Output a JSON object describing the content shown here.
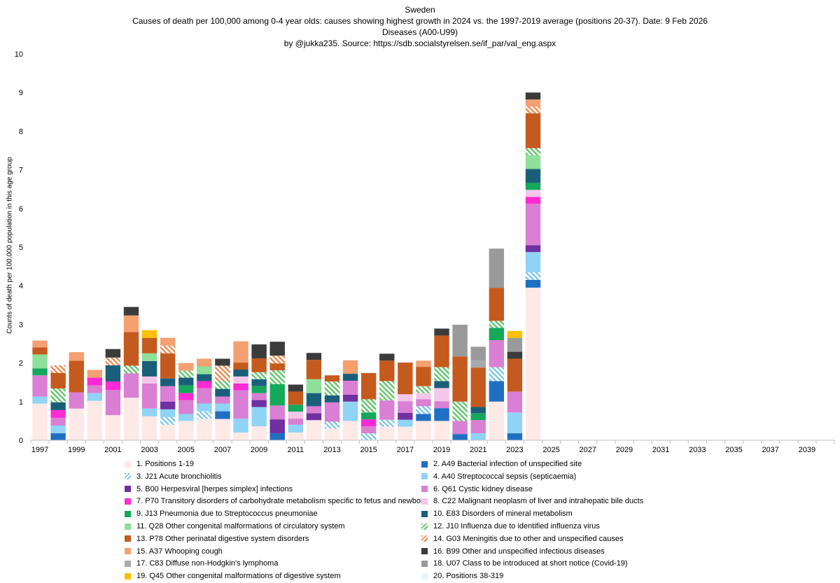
{
  "titles": {
    "line1": "Sweden",
    "line2": "Causes of death per 100,000 among 0-4 year olds: causes showing highest growth in 2024 vs. the 1997-2019 average (positions 20-37). Date: 9 Feb 2026",
    "line3": "Diseases (A00-U99)",
    "line4": "by @jukka235. Source: https://sdb.socialstyrelsen.se/if_par/val_eng.aspx"
  },
  "chart_data": {
    "type": "bar",
    "stacked": true,
    "title": "Causes of death per 100,000 among 0-4 year olds: causes showing highest growth in 2024 vs. the 1997-2019 average (positions 20-37). Date: 9 Feb 2026",
    "xlabel": "",
    "ylabel": "Counts of death per 100,000 population in this age group",
    "ylim": [
      0,
      10
    ],
    "yticks": [
      "0",
      "1",
      "2",
      "3",
      "4",
      "5",
      "6",
      "7",
      "8",
      "9",
      "10"
    ],
    "xlim": [
      1997,
      2040
    ],
    "xticks": [
      "1997",
      "1999",
      "2001",
      "2003",
      "2005",
      "2007",
      "2009",
      "2011",
      "2013",
      "2015",
      "2017",
      "2019",
      "2021",
      "2023",
      "2025",
      "2027",
      "2029",
      "2031",
      "2033",
      "2035",
      "2037",
      "2039"
    ],
    "categories": [
      "1997",
      "1998",
      "1999",
      "2000",
      "2001",
      "2002",
      "2003",
      "2004",
      "2005",
      "2006",
      "2007",
      "2008",
      "2009",
      "2010",
      "2011",
      "2012",
      "2013",
      "2014",
      "2015",
      "2016",
      "2017",
      "2018",
      "2019",
      "2020",
      "2021",
      "2022",
      "2023",
      "2024"
    ],
    "series": [
      {
        "name": "1. Positions 1-19",
        "color": "#fde9e6",
        "pattern": "solid",
        "values": [
          0.95,
          0.0,
          0.82,
          1.02,
          0.65,
          1.1,
          0.62,
          0.4,
          0.5,
          0.55,
          0.55,
          0.2,
          0.36,
          0.0,
          0.2,
          0.52,
          0.3,
          0.5,
          0.0,
          0.35,
          0.35,
          0.5,
          0.5,
          0.0,
          0.0,
          1.0,
          0.0,
          3.95
        ]
      },
      {
        "name": "2. A49 Bacterial infection of unspecified site",
        "color": "#1f6fc3",
        "pattern": "solid",
        "values": [
          0,
          0.18,
          0,
          0,
          0,
          0,
          0,
          0,
          0,
          0,
          0.2,
          0,
          0,
          0.18,
          0,
          0,
          0,
          0,
          0,
          0,
          0,
          0.18,
          0.33,
          0.16,
          0,
          0.53,
          0.18,
          0.2
        ]
      },
      {
        "name": "3. J21 Acute bronchiolitis",
        "color": "#7cc7e8",
        "pattern": "hatch",
        "values": [
          0,
          0,
          0,
          0,
          0,
          0,
          0,
          0.2,
          0,
          0.2,
          0,
          0,
          0,
          0,
          0,
          0,
          0.18,
          0,
          0.18,
          0.18,
          0,
          0.2,
          0,
          0,
          0,
          0.36,
          0,
          0.2
        ]
      },
      {
        "name": "4. A40 Streptococcal sepsis (septicaemia)",
        "color": "#8fd3f5",
        "pattern": "solid",
        "values": [
          0.18,
          0.2,
          0,
          0.2,
          0,
          0,
          0.2,
          0.2,
          0.18,
          0.2,
          0.2,
          0.36,
          0.5,
          0,
          0.2,
          0,
          0,
          0.5,
          0,
          0,
          0.18,
          0,
          0,
          0,
          0.18,
          0,
          0.54,
          0.52
        ]
      },
      {
        "name": "5. B00 Herpesviral [herpes simplex] infections",
        "color": "#7030a0",
        "pattern": "solid",
        "values": [
          0,
          0,
          0,
          0,
          0,
          0,
          0,
          0.2,
          0,
          0,
          0,
          0,
          0.18,
          0.36,
          0,
          0.18,
          0,
          0.18,
          0,
          0,
          0.18,
          0,
          0,
          0,
          0,
          0,
          0,
          0.18
        ]
      },
      {
        "name": "6. Q61 Cystic kidney disease",
        "color": "#d97fd4",
        "pattern": "solid",
        "values": [
          0.55,
          0.2,
          0.42,
          0.2,
          0.65,
          0.63,
          0.65,
          0.4,
          0.36,
          0.4,
          0.18,
          0.73,
          0.18,
          0.36,
          0.16,
          0.18,
          0.5,
          0.36,
          0.18,
          0.5,
          0.3,
          0.18,
          0.18,
          0.34,
          0.34,
          0.7,
          0.54,
          1.07
        ]
      },
      {
        "name": "7. P70 Transitory disorders of carbohydrate metabolism specific to fetus and newborn",
        "color": "#ff2ad4",
        "pattern": "solid",
        "values": [
          0,
          0.2,
          0,
          0.2,
          0.22,
          0,
          0,
          0,
          0.18,
          0.18,
          0,
          0.18,
          0,
          0,
          0,
          0,
          0,
          0,
          0.18,
          0,
          0,
          0,
          0,
          0,
          0,
          0,
          0,
          0.18
        ]
      },
      {
        "name": "8. C22 Malignant neoplasm of liver and intrahepatic bile ducts",
        "color": "#f4c6ea",
        "pattern": "solid",
        "values": [
          0,
          0,
          0,
          0,
          0,
          0,
          0.18,
          0,
          0,
          0,
          0,
          0.18,
          0,
          0,
          0.18,
          0,
          0,
          0,
          0,
          0,
          0.18,
          0.16,
          0.34,
          0,
          0,
          0,
          0,
          0.18
        ]
      },
      {
        "name": "9. J13 Pneumonia due to Streptococcus pneumoniae",
        "color": "#14a85a",
        "pattern": "solid",
        "values": [
          0.18,
          0,
          0,
          0,
          0,
          0,
          0,
          0,
          0.2,
          0,
          0,
          0,
          0.18,
          0.55,
          0.18,
          0,
          0,
          0,
          0.18,
          0,
          0,
          0,
          0,
          0,
          0.18,
          0.32,
          0,
          0.18
        ]
      },
      {
        "name": "10. E83 Disorders of mineral metabolism",
        "color": "#1a5f7a",
        "pattern": "solid",
        "values": [
          0,
          0.2,
          0,
          0,
          0.42,
          0,
          0.4,
          0.2,
          0.2,
          0.18,
          0.2,
          0.18,
          0.18,
          0,
          0,
          0.34,
          0.18,
          0.18,
          0,
          0,
          0,
          0,
          0.18,
          0,
          0.16,
          0,
          0,
          0.36
        ]
      },
      {
        "name": "11. Q28 Other congenital malformations of circulatory system",
        "color": "#8ee09a",
        "pattern": "solid",
        "values": [
          0.36,
          0,
          0,
          0,
          0,
          0,
          0.2,
          0,
          0,
          0.2,
          0,
          0,
          0,
          0,
          0,
          0.36,
          0,
          0,
          0,
          0,
          0,
          0,
          0,
          0,
          0,
          0,
          0,
          0.36
        ]
      },
      {
        "name": "12. J10 Influenza due to identified influenza virus",
        "color": "#62c46c",
        "pattern": "hatch",
        "values": [
          0,
          0.36,
          0,
          0,
          0,
          0.2,
          0,
          0,
          0.18,
          0,
          0.2,
          0,
          0.18,
          0.36,
          0,
          0,
          0.36,
          0,
          0.34,
          0.5,
          0,
          0.18,
          0.36,
          0.5,
          0,
          0.18,
          0,
          0.18
        ]
      },
      {
        "name": "13. P78 Other perinatal digestive system disorders",
        "color": "#c55a1e",
        "pattern": "solid",
        "values": [
          0.18,
          0.4,
          0.82,
          0,
          0,
          0.87,
          0.4,
          0.65,
          0,
          0,
          0,
          0.18,
          0.36,
          0.18,
          0.34,
          0.5,
          0.16,
          0,
          0.68,
          0.53,
          0.82,
          0.5,
          0.82,
          1.17,
          1.02,
          0.85,
          0.85,
          0.9
        ]
      },
      {
        "name": "14. G03 Meningitis due to other and unspecified causes",
        "color": "#ee8a50",
        "pattern": "hatch",
        "values": [
          0,
          0.2,
          0,
          0,
          0.2,
          0,
          0,
          0.2,
          0,
          0,
          0.4,
          0,
          0,
          0.2,
          0,
          0,
          0,
          0,
          0,
          0,
          0,
          0,
          0,
          0,
          0,
          0,
          0,
          0.18
        ]
      },
      {
        "name": "15. A37 Whooping cough",
        "color": "#f4a070",
        "pattern": "solid",
        "values": [
          0.18,
          0,
          0.22,
          0.2,
          0,
          0.43,
          0,
          0.2,
          0.2,
          0.2,
          0,
          0.55,
          0,
          0,
          0,
          0,
          0,
          0.35,
          0,
          0,
          0,
          0.16,
          0,
          0,
          0,
          0,
          0,
          0.18
        ]
      },
      {
        "name": "16. B99 Other and unspecified infectious diseases",
        "color": "#3b3b3b",
        "pattern": "solid",
        "values": [
          0,
          0,
          0,
          0,
          0.22,
          0.22,
          0,
          0,
          0,
          0,
          0.18,
          0,
          0.36,
          0.36,
          0.18,
          0.18,
          0,
          0,
          0,
          0.18,
          0,
          0,
          0.18,
          0,
          0,
          0,
          0.18,
          0.18
        ]
      },
      {
        "name": "17. C83 Diffuse non-Hodgkin's lymphoma",
        "color": "#a9a9a9",
        "pattern": "solid",
        "values": [
          0,
          0,
          0,
          0,
          0,
          0,
          0,
          0,
          0,
          0,
          0,
          0,
          0,
          0,
          0,
          0,
          0,
          0,
          0,
          0,
          0,
          0,
          0,
          0,
          0.18,
          0,
          0,
          0
        ]
      },
      {
        "name": "18. U07 Class to be introduced at short notice (Covid-19)",
        "color": "#9a9a9a",
        "pattern": "solid",
        "values": [
          0,
          0,
          0,
          0,
          0,
          0,
          0,
          0,
          0,
          0,
          0,
          0,
          0,
          0,
          0,
          0,
          0,
          0,
          0,
          0,
          0,
          0,
          0,
          0.82,
          0.36,
          1.02,
          0.36,
          0
        ]
      },
      {
        "name": "19. Q45 Other congenital malformations of digestive system",
        "color": "#ffc000",
        "pattern": "solid",
        "values": [
          0,
          0,
          0,
          0,
          0,
          0,
          0.2,
          0,
          0,
          0,
          0,
          0,
          0,
          0,
          0,
          0,
          0,
          0,
          0,
          0,
          0,
          0,
          0,
          0,
          0,
          0,
          0.18,
          0
        ]
      },
      {
        "name": "20. Positions 38-319",
        "color": "#eaf5fb",
        "pattern": "solid",
        "values": [
          0,
          0,
          0,
          0,
          0,
          0,
          0,
          0,
          0,
          0,
          0,
          0,
          0,
          0,
          0,
          0,
          0,
          0,
          0,
          0,
          0,
          0,
          0,
          0,
          0,
          0,
          0,
          0
        ]
      }
    ],
    "legend_position": "bottom",
    "grid": false
  }
}
